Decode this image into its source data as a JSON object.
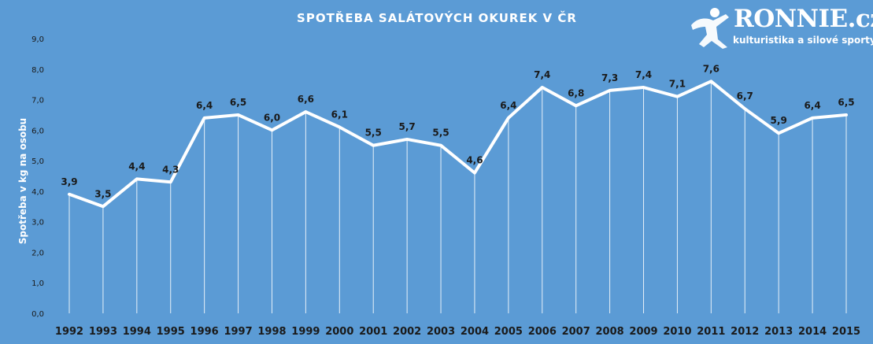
{
  "chart_data": {
    "type": "line",
    "title": "SPOTŘEBA SALÁTOVÝCH OKUREK V ČR",
    "xlabel": "",
    "ylabel": "Spotřeba v kg na osobu",
    "ylim": [
      0,
      9
    ],
    "yticks": [
      "0,0",
      "1,0",
      "2,0",
      "3,0",
      "4,0",
      "5,0",
      "6,0",
      "7,0",
      "8,0",
      "9,0"
    ],
    "categories": [
      "1992",
      "1993",
      "1994",
      "1995",
      "1996",
      "1997",
      "1998",
      "1999",
      "2000",
      "2001",
      "2002",
      "2003",
      "2004",
      "2005",
      "2006",
      "2007",
      "2008",
      "2009",
      "2010",
      "2011",
      "2012",
      "2013",
      "2014",
      "2015"
    ],
    "series": [
      {
        "values": [
          3.9,
          3.5,
          4.4,
          4.3,
          6.4,
          6.5,
          6.0,
          6.6,
          6.1,
          5.5,
          5.7,
          5.5,
          4.6,
          6.4,
          7.4,
          6.8,
          7.3,
          7.4,
          7.1,
          7.6,
          6.7,
          5.9,
          6.4,
          6.5
        ],
        "labels": [
          "3,9",
          "3,5",
          "4,4",
          "4,3",
          "6,4",
          "6,5",
          "6,0",
          "6,6",
          "6,1",
          "5,5",
          "5,7",
          "5,5",
          "4,6",
          "6,4",
          "7,4",
          "6,8",
          "7,3",
          "7,4",
          "7,1",
          "7,6",
          "6,7",
          "5,9",
          "6,4",
          "6,5"
        ]
      }
    ],
    "grid": false,
    "drop_lines": true,
    "legend": "none",
    "colors": {
      "background": "#5b9bd5",
      "line": "#ffffff",
      "labels": "#1a1a1a",
      "axis_text": "#ffffff",
      "tick_text": "#1a1a1a"
    }
  },
  "logo": {
    "name": "RONNIE.cz",
    "tagline": "kulturistika a silové sporty",
    "icon": "athlete-figure-icon"
  }
}
